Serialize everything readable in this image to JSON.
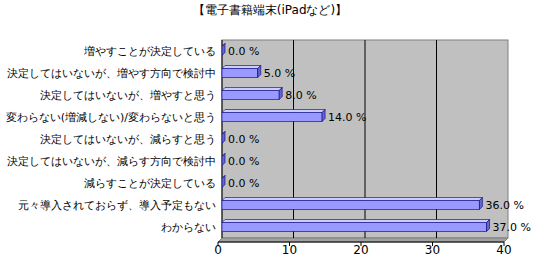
{
  "chart_data": {
    "type": "bar",
    "orientation": "horizontal",
    "title": "【電子書籍端末(iPadなど)】",
    "categories": [
      "増やすことが決定している",
      "決定してはいないが、増やす方向で検討中",
      "決定してはいないが、増やすと思う",
      "変わらない(増減しない)/変わらないと思う",
      "決定してはいないが、減らすと思う",
      "決定してはいないが、減らす方向で検討中",
      "減らすことが決定している",
      "元々導入されておらず、導入予定もない",
      "わからない"
    ],
    "values": [
      0,
      5,
      8,
      14,
      0,
      0,
      0,
      36,
      37
    ],
    "value_labels": [
      "0.0 %",
      "5.0 %",
      "8.0 %",
      "14.0 %",
      "0.0 %",
      "0.0 %",
      "0.0 %",
      "36.0 %",
      "37.0 %"
    ],
    "color": "#9999ff",
    "ylim": [
      0,
      40
    ],
    "yticks": [
      0,
      10,
      20,
      30,
      40
    ],
    "grid": true,
    "data_labels": true
  }
}
